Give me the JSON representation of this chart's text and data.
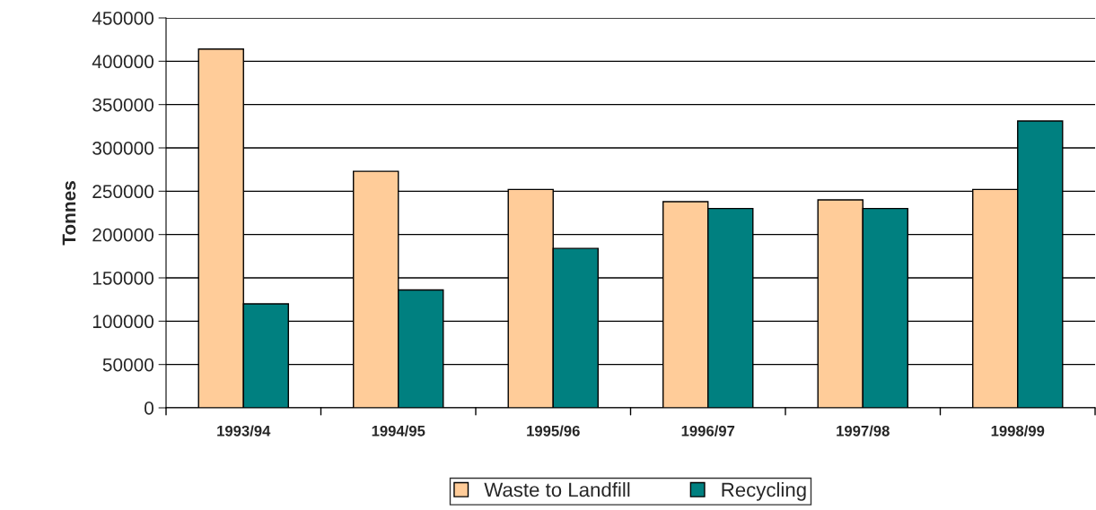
{
  "chart_data": {
    "type": "bar",
    "ylabel": "Tonnes",
    "categories": [
      "1993/94",
      "1994/95",
      "1995/96",
      "1996/97",
      "1997/98",
      "1998/99"
    ],
    "series": [
      {
        "name": "Waste to Landfill",
        "color": "#ffcc99",
        "values": [
          414000,
          273000,
          252000,
          238000,
          240000,
          252000
        ]
      },
      {
        "name": "Recycling",
        "color": "#008080",
        "values": [
          120000,
          136000,
          184000,
          230000,
          230000,
          331000
        ]
      }
    ],
    "ylim": [
      0,
      450000
    ],
    "yticks": [
      0,
      50000,
      100000,
      150000,
      200000,
      250000,
      300000,
      350000,
      400000,
      450000
    ],
    "grid": "y",
    "legend": "bottom"
  }
}
